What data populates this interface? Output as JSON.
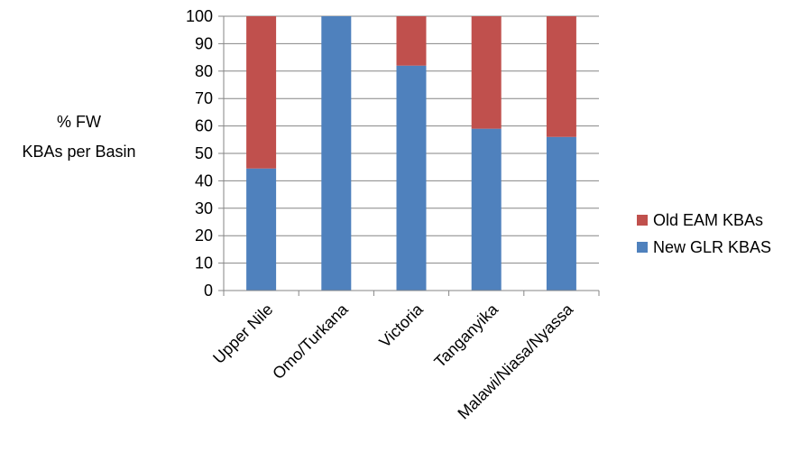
{
  "chart_data": {
    "type": "bar",
    "stacked": true,
    "categories": [
      "Upper Nile",
      "Omo/Turkana",
      "Victoria",
      "Tanganyika",
      "Malawi/Niasa/Nyassa"
    ],
    "series": [
      {
        "name": "New GLR KBAS",
        "color": "#4F81BD",
        "values": [
          44.5,
          100,
          82,
          59,
          56
        ]
      },
      {
        "name": "Old EAM KBAs",
        "color": "#C0504D",
        "values": [
          55.5,
          0,
          18,
          41,
          44
        ]
      }
    ],
    "ylabel_lines": [
      "% FW",
      "KBAs per Basin"
    ],
    "xlabel": "",
    "ylim": [
      0,
      100
    ],
    "yticks": [
      0,
      10,
      20,
      30,
      40,
      50,
      60,
      70,
      80,
      90,
      100
    ],
    "grid": true,
    "legend_position": "right",
    "legend_order": [
      "Old EAM KBAs",
      "New GLR KBAS"
    ]
  }
}
